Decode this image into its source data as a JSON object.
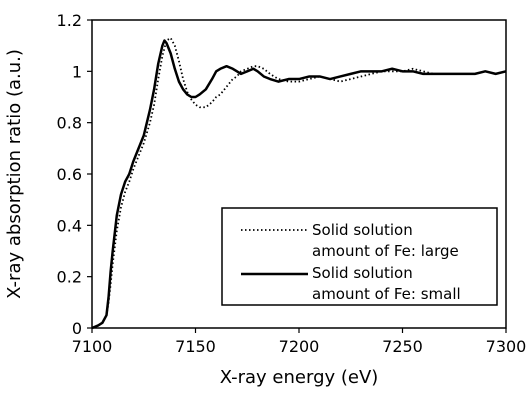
{
  "chart_data": {
    "type": "line",
    "title": "",
    "xlabel": "X-ray energy (eV)",
    "ylabel": "X-ray absorption ratio (a.u.)",
    "xlim": [
      7100,
      7300
    ],
    "ylim": [
      0,
      1.2
    ],
    "xticks": [
      "7100",
      "7150",
      "7200",
      "7250",
      "7300"
    ],
    "yticks": [
      "0",
      "0.2",
      "0.4",
      "0.6",
      "0.8",
      "1",
      "1.2"
    ],
    "grid": false,
    "legend_position": "bottom-right",
    "series": [
      {
        "name": "Solid solution amount of Fe: large",
        "legend_lines": [
          "Solid solution",
          "amount of Fe: large"
        ],
        "style": "dotted",
        "color": "#000000",
        "x": [
          7100,
          7103,
          7105,
          7107,
          7108,
          7109,
          7110,
          7112,
          7114,
          7116,
          7118,
          7120,
          7122,
          7125,
          7128,
          7130,
          7132,
          7134,
          7136,
          7138,
          7140,
          7142,
          7144,
          7146,
          7148,
          7150,
          7152,
          7155,
          7158,
          7160,
          7162,
          7165,
          7168,
          7170,
          7172,
          7175,
          7178,
          7180,
          7183,
          7186,
          7190,
          7195,
          7200,
          7205,
          7210,
          7215,
          7220,
          7225,
          7230,
          7235,
          7240,
          7245,
          7250,
          7255,
          7260,
          7265,
          7270,
          7275,
          7280,
          7285,
          7290,
          7295,
          7300
        ],
        "y": [
          0.0,
          0.01,
          0.02,
          0.05,
          0.1,
          0.17,
          0.25,
          0.38,
          0.47,
          0.53,
          0.57,
          0.62,
          0.66,
          0.72,
          0.8,
          0.87,
          0.97,
          1.06,
          1.12,
          1.13,
          1.1,
          1.04,
          0.97,
          0.92,
          0.89,
          0.87,
          0.86,
          0.86,
          0.88,
          0.9,
          0.91,
          0.94,
          0.97,
          0.98,
          1.0,
          1.01,
          1.02,
          1.02,
          1.01,
          0.99,
          0.97,
          0.96,
          0.96,
          0.97,
          0.98,
          0.97,
          0.96,
          0.97,
          0.98,
          0.99,
          1.0,
          1.0,
          1.0,
          1.01,
          1.0,
          0.99,
          0.99,
          0.99,
          0.99,
          0.99,
          1.0,
          0.99,
          1.0
        ]
      },
      {
        "name": "Solid solution amount of Fe: small",
        "legend_lines": [
          "Solid solution",
          "amount of Fe: small"
        ],
        "style": "solid",
        "color": "#000000",
        "x": [
          7100,
          7103,
          7105,
          7107,
          7108,
          7109,
          7110,
          7112,
          7114,
          7116,
          7118,
          7120,
          7122,
          7125,
          7128,
          7130,
          7132,
          7134,
          7135,
          7136,
          7138,
          7140,
          7142,
          7144,
          7146,
          7148,
          7150,
          7152,
          7155,
          7158,
          7160,
          7162,
          7165,
          7168,
          7170,
          7172,
          7175,
          7178,
          7180,
          7183,
          7186,
          7190,
          7195,
          7200,
          7205,
          7210,
          7215,
          7220,
          7225,
          7230,
          7235,
          7240,
          7245,
          7250,
          7255,
          7260,
          7265,
          7270,
          7275,
          7280,
          7285,
          7290,
          7295,
          7300
        ],
        "y": [
          0.0,
          0.01,
          0.02,
          0.05,
          0.12,
          0.22,
          0.3,
          0.44,
          0.52,
          0.57,
          0.6,
          0.65,
          0.69,
          0.75,
          0.85,
          0.93,
          1.03,
          1.1,
          1.12,
          1.11,
          1.07,
          1.01,
          0.96,
          0.93,
          0.91,
          0.9,
          0.9,
          0.91,
          0.93,
          0.97,
          1.0,
          1.01,
          1.02,
          1.01,
          1.0,
          0.99,
          1.0,
          1.01,
          1.0,
          0.98,
          0.97,
          0.96,
          0.97,
          0.97,
          0.98,
          0.98,
          0.97,
          0.98,
          0.99,
          1.0,
          1.0,
          1.0,
          1.01,
          1.0,
          1.0,
          0.99,
          0.99,
          0.99,
          0.99,
          0.99,
          0.99,
          1.0,
          0.99,
          1.0
        ]
      }
    ]
  }
}
